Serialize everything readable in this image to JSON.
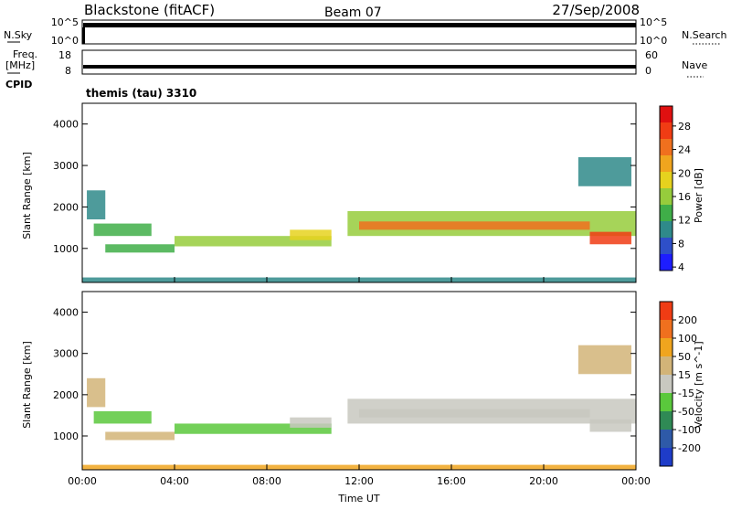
{
  "header": {
    "station": "Blackstone (fitACF)",
    "beam": "Beam 07",
    "date": "27/Sep/2008"
  },
  "top_panels": {
    "nsky_label": "N.Sky",
    "nsky_ticks": [
      "10^5",
      "10^0"
    ],
    "nsearch_label": "N.Search",
    "nsearch_ticks": [
      "10^5",
      "10^0"
    ],
    "freq_label": "Freq.",
    "freq_unit": "[MHz]",
    "freq_ticks": [
      "18",
      "8"
    ],
    "nave_label": "Nave",
    "nave_ticks": [
      "60",
      "0"
    ],
    "cpid_label": "CPID",
    "cpid_value": "themis (tau) 3310"
  },
  "chart_data": [
    {
      "type": "heatmap",
      "panel": "power",
      "ylabel": "Slant Range [km]",
      "ylim": [
        180,
        4500
      ],
      "yticks": [
        "4000",
        "3000",
        "2000",
        "1000"
      ],
      "colorbar_label": "Power [dB]",
      "colorbar_ticks": [
        "28",
        "24",
        "20",
        "16",
        "12",
        "8",
        "4"
      ],
      "colors": [
        "#1d1dff",
        "#2e4fc8",
        "#2f8a8a",
        "#3fae48",
        "#96cc3c",
        "#e6d21e",
        "#f0a51e",
        "#f0701e",
        "#f03c14",
        "#e01010"
      ],
      "levels": [
        0,
        30
      ],
      "bands": [
        {
          "t0": 0.2,
          "t1": 1.0,
          "r0": 1700,
          "r1": 2400,
          "v": 8
        },
        {
          "t0": 0.5,
          "t1": 3.0,
          "r0": 1300,
          "r1": 1600,
          "v": 10
        },
        {
          "t0": 1.0,
          "t1": 4.0,
          "r0": 900,
          "r1": 1100,
          "v": 9
        },
        {
          "t0": 4.0,
          "t1": 10.8,
          "r0": 1050,
          "r1": 1300,
          "v": 12
        },
        {
          "t0": 9.0,
          "t1": 10.8,
          "r0": 1200,
          "r1": 1450,
          "v": 16
        },
        {
          "t0": 0.0,
          "t1": 24.0,
          "r0": 180,
          "r1": 300,
          "v": 6
        },
        {
          "t0": 11.5,
          "t1": 24.0,
          "r0": 1300,
          "r1": 1900,
          "v": 14
        },
        {
          "t0": 12.0,
          "t1": 22.0,
          "r0": 1450,
          "r1": 1650,
          "v": 22
        },
        {
          "t0": 22.0,
          "t1": 23.8,
          "r0": 1100,
          "r1": 1400,
          "v": 26
        },
        {
          "t0": 21.5,
          "t1": 23.8,
          "r0": 2500,
          "r1": 3200,
          "v": 7
        }
      ]
    },
    {
      "type": "heatmap",
      "panel": "velocity",
      "xlabel": "Time UT",
      "xticks": [
        "00:00",
        "04:00",
        "08:00",
        "12:00",
        "16:00",
        "20:00",
        "00:00"
      ],
      "xlim": [
        0,
        24
      ],
      "ylabel": "Slant Range [km]",
      "ylim": [
        180,
        4500
      ],
      "yticks": [
        "4000",
        "3000",
        "2000",
        "1000"
      ],
      "colorbar_label": "Velocity [m s^-1]",
      "colorbar_ticks": [
        "200",
        "100",
        "50",
        "15",
        "-15",
        "-50",
        "-100",
        "-200"
      ],
      "colors": [
        "#1e3cc8",
        "#2e5aa8",
        "#2f8a55",
        "#5ac83c",
        "#c8c8c0",
        "#d2b478",
        "#f0a51e",
        "#f0701e",
        "#f03c14"
      ],
      "bands": [
        {
          "t0": 0.2,
          "t1": 1.0,
          "r0": 1700,
          "r1": 2400,
          "c": 5
        },
        {
          "t0": 0.5,
          "t1": 3.0,
          "r0": 1300,
          "r1": 1600,
          "c": 3
        },
        {
          "t0": 1.0,
          "t1": 4.0,
          "r0": 900,
          "r1": 1100,
          "c": 5
        },
        {
          "t0": 4.0,
          "t1": 10.8,
          "r0": 1050,
          "r1": 1300,
          "c": 3
        },
        {
          "t0": 9.0,
          "t1": 10.8,
          "r0": 1200,
          "r1": 1450,
          "c": 4
        },
        {
          "t0": 0.0,
          "t1": 24.0,
          "r0": 180,
          "r1": 300,
          "c": 6
        },
        {
          "t0": 11.5,
          "t1": 24.0,
          "r0": 1300,
          "r1": 1900,
          "c": 4
        },
        {
          "t0": 12.0,
          "t1": 22.0,
          "r0": 1450,
          "r1": 1650,
          "c": 4
        },
        {
          "t0": 22.0,
          "t1": 23.8,
          "r0": 1100,
          "r1": 1400,
          "c": 4
        },
        {
          "t0": 21.5,
          "t1": 23.8,
          "r0": 2500,
          "r1": 3200,
          "c": 5
        }
      ]
    }
  ]
}
